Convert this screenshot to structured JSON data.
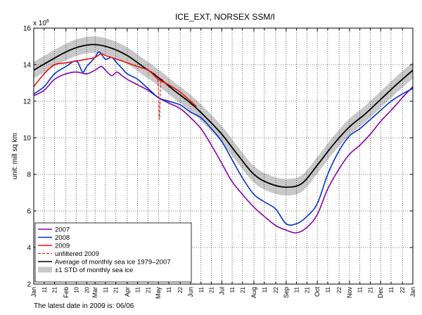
{
  "chart_data": {
    "type": "line",
    "title": "ICE_EXT, NORSEX SSM/I",
    "ylabel": "unit: mill sq km",
    "y_multiplier": "x 10^6",
    "ylim": [
      2,
      16
    ],
    "y_ticks": [
      2,
      4,
      6,
      8,
      10,
      12,
      14,
      16
    ],
    "xlim": [
      0,
      365
    ],
    "x_ticks": [
      {
        "label": "Jan",
        "day": 0,
        "major": true
      },
      {
        "label": "11",
        "day": 10
      },
      {
        "label": "21",
        "day": 20
      },
      {
        "label": "Feb",
        "day": 31,
        "major": true
      },
      {
        "label": "10",
        "day": 41
      },
      {
        "label": "20",
        "day": 51
      },
      {
        "label": "Mar",
        "day": 59,
        "major": true
      },
      {
        "label": "11",
        "day": 69
      },
      {
        "label": "21",
        "day": 79
      },
      {
        "label": "Apr",
        "day": 90,
        "major": true
      },
      {
        "label": "11",
        "day": 100
      },
      {
        "label": "21",
        "day": 110
      },
      {
        "label": "May",
        "day": 120,
        "major": true
      },
      {
        "label": "11",
        "day": 130
      },
      {
        "label": "22",
        "day": 141
      },
      {
        "label": "Jun",
        "day": 151,
        "major": true
      },
      {
        "label": "11",
        "day": 161
      },
      {
        "label": "21",
        "day": 171
      },
      {
        "label": "Jul",
        "day": 181,
        "major": true
      },
      {
        "label": "11",
        "day": 191
      },
      {
        "label": "21",
        "day": 201
      },
      {
        "label": "Aug",
        "day": 212,
        "major": true
      },
      {
        "label": "11",
        "day": 222
      },
      {
        "label": "22",
        "day": 233
      },
      {
        "label": "Sep",
        "day": 243,
        "major": true
      },
      {
        "label": "11",
        "day": 253
      },
      {
        "label": "21",
        "day": 263
      },
      {
        "label": "Oct",
        "day": 273,
        "major": true
      },
      {
        "label": "11",
        "day": 283
      },
      {
        "label": "22",
        "day": 294
      },
      {
        "label": "Nov",
        "day": 304,
        "major": true
      },
      {
        "label": "11",
        "day": 314
      },
      {
        "label": "21",
        "day": 324
      },
      {
        "label": "Dec",
        "day": 334,
        "major": true
      },
      {
        "label": "11",
        "day": 344
      },
      {
        "label": "22",
        "day": 355
      },
      {
        "label": "Jan",
        "day": 365,
        "major": true
      }
    ],
    "grid": true,
    "legend_position": "bottom-left",
    "series": [
      {
        "name": "2007",
        "color": "#8800aa",
        "style": "solid",
        "x": [
          0,
          10,
          20,
          31,
          41,
          51,
          59,
          65,
          69,
          75,
          80,
          85,
          90,
          100,
          110,
          120,
          130,
          141,
          151,
          161,
          171,
          181,
          191,
          201,
          212,
          222,
          233,
          243,
          253,
          263,
          273,
          283,
          294,
          304,
          314,
          324,
          334,
          344,
          355,
          365
        ],
        "y": [
          12.3,
          12.6,
          13.2,
          13.5,
          13.6,
          13.5,
          13.7,
          13.9,
          13.7,
          13.4,
          13.6,
          13.4,
          13.2,
          12.9,
          12.6,
          12.2,
          11.9,
          11.6,
          11.1,
          10.5,
          9.6,
          8.6,
          7.6,
          6.9,
          6.2,
          5.7,
          5.2,
          4.95,
          4.8,
          5.1,
          5.8,
          7.2,
          8.3,
          9.1,
          9.6,
          10.2,
          10.9,
          11.5,
          12.2,
          12.8
        ]
      },
      {
        "name": "2008",
        "color": "#0033cc",
        "style": "solid",
        "x": [
          0,
          10,
          20,
          31,
          41,
          47,
          51,
          59,
          63,
          69,
          75,
          80,
          85,
          90,
          100,
          110,
          120,
          130,
          141,
          151,
          161,
          171,
          181,
          191,
          201,
          212,
          222,
          233,
          243,
          253,
          263,
          273,
          283,
          294,
          304,
          314,
          324,
          334,
          344,
          355,
          365
        ],
        "y": [
          12.4,
          12.8,
          13.5,
          13.9,
          14.2,
          13.6,
          13.9,
          14.4,
          14.7,
          14.3,
          14.4,
          14.1,
          13.8,
          13.5,
          13.2,
          12.7,
          12.2,
          12.0,
          11.8,
          11.4,
          11.1,
          10.5,
          9.8,
          8.8,
          7.8,
          6.9,
          6.5,
          6.1,
          5.3,
          5.3,
          5.7,
          6.4,
          8.0,
          9.3,
          10.1,
          10.5,
          11.0,
          11.5,
          12.0,
          12.4,
          12.7
        ]
      },
      {
        "name": "2009",
        "color": "#ee1111",
        "style": "solid",
        "x": [
          0,
          10,
          20,
          31,
          41,
          51,
          59,
          65,
          69,
          75,
          80,
          85,
          90,
          100,
          110,
          120,
          130,
          141,
          151,
          157
        ],
        "y": [
          12.8,
          13.5,
          14.0,
          14.1,
          14.2,
          14.3,
          14.4,
          14.6,
          14.5,
          14.4,
          14.3,
          14.2,
          14.1,
          13.9,
          13.7,
          13.2,
          12.9,
          12.5,
          12.0,
          11.7
        ]
      },
      {
        "name": "unfiltered 2009",
        "color": "#ee1111",
        "style": "dashed",
        "x": [
          100,
          110,
          118,
          120,
          121,
          122,
          123,
          125,
          130,
          141,
          151,
          157
        ],
        "y": [
          13.9,
          13.7,
          13.4,
          12.6,
          11.0,
          12.8,
          13.2,
          13.1,
          12.9,
          12.5,
          12.0,
          11.7
        ]
      },
      {
        "name": "Average of monthly sea ice 1979–2007",
        "color": "#000000",
        "style": "solid",
        "x": [
          0,
          15,
          31,
          45,
          59,
          75,
          90,
          105,
          120,
          135,
          151,
          166,
          181,
          196,
          212,
          227,
          243,
          258,
          273,
          288,
          304,
          319,
          334,
          349,
          365
        ],
        "y": [
          13.7,
          14.2,
          14.7,
          15.0,
          15.1,
          14.9,
          14.5,
          13.9,
          13.3,
          12.6,
          11.9,
          11.1,
          10.2,
          9.1,
          8.0,
          7.5,
          7.3,
          7.5,
          8.5,
          9.6,
          10.6,
          11.3,
          12.1,
          12.9,
          13.7
        ]
      }
    ],
    "std_band": {
      "name": "±1 STD of monthly sea ice",
      "color": "#c8c8c8",
      "half_width": 0.45
    }
  },
  "footnote": "The latest date in 2009 is: 06/06"
}
